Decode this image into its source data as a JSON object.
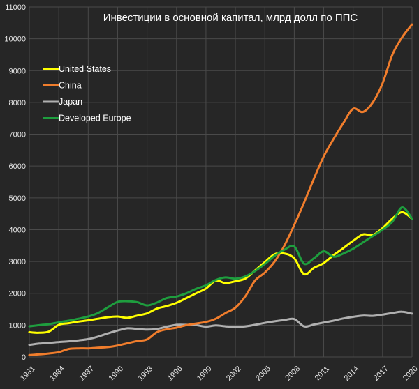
{
  "chart_data": {
    "type": "line",
    "title": "Инвестиции в основной капитал, млрд долл по ППС",
    "xlabel": "",
    "ylabel": "",
    "ylim": [
      0,
      11000
    ],
    "xlim": [
      1981,
      2020
    ],
    "yticks": [
      0,
      1000,
      2000,
      3000,
      4000,
      5000,
      6000,
      7000,
      8000,
      9000,
      10000,
      11000
    ],
    "xticks": [
      1981,
      1984,
      1987,
      1990,
      1993,
      1996,
      1999,
      2002,
      2005,
      2008,
      2011,
      2014,
      2017,
      2020
    ],
    "grid": true,
    "legend_position": "top-left",
    "x": [
      1981,
      1982,
      1983,
      1984,
      1985,
      1986,
      1987,
      1988,
      1989,
      1990,
      1991,
      1992,
      1993,
      1994,
      1995,
      1996,
      1997,
      1998,
      1999,
      2000,
      2001,
      2002,
      2003,
      2004,
      2005,
      2006,
      2007,
      2008,
      2009,
      2010,
      2011,
      2012,
      2013,
      2014,
      2015,
      2016,
      2017,
      2018,
      2019,
      2020
    ],
    "series": [
      {
        "name": "United States",
        "color": "#ffff00",
        "values": [
          780,
          760,
          800,
          1010,
          1060,
          1110,
          1150,
          1200,
          1250,
          1270,
          1230,
          1300,
          1370,
          1520,
          1600,
          1700,
          1850,
          2000,
          2150,
          2400,
          2320,
          2380,
          2460,
          2720,
          2980,
          3230,
          3250,
          3100,
          2600,
          2800,
          2950,
          3200,
          3420,
          3650,
          3850,
          3830,
          4050,
          4350,
          4550,
          4350
        ]
      },
      {
        "name": "China",
        "color": "#f07d2c",
        "values": [
          60,
          80,
          110,
          150,
          250,
          270,
          270,
          290,
          310,
          360,
          430,
          500,
          550,
          780,
          870,
          920,
          1000,
          1050,
          1100,
          1200,
          1380,
          1550,
          1900,
          2400,
          2650,
          3000,
          3500,
          4150,
          4850,
          5600,
          6300,
          6850,
          7350,
          7800,
          7700,
          8000,
          8600,
          9500,
          10050,
          10450
        ]
      },
      {
        "name": "Japan",
        "color": "#b0b0b0",
        "values": [
          380,
          420,
          440,
          470,
          490,
          520,
          560,
          640,
          740,
          830,
          900,
          880,
          860,
          880,
          950,
          1010,
          1010,
          1000,
          950,
          990,
          960,
          940,
          960,
          1010,
          1070,
          1120,
          1160,
          1190,
          960,
          1020,
          1080,
          1140,
          1210,
          1260,
          1300,
          1290,
          1330,
          1380,
          1420,
          1360
        ]
      },
      {
        "name": "Developed Europe",
        "color": "#1e9e3e",
        "values": [
          960,
          1000,
          1030,
          1090,
          1140,
          1200,
          1270,
          1380,
          1560,
          1730,
          1750,
          1720,
          1620,
          1710,
          1850,
          1900,
          2000,
          2140,
          2250,
          2420,
          2500,
          2460,
          2530,
          2700,
          2920,
          3180,
          3370,
          3470,
          2930,
          3100,
          3320,
          3150,
          3250,
          3400,
          3600,
          3800,
          4000,
          4250,
          4700,
          4350
        ]
      }
    ]
  }
}
